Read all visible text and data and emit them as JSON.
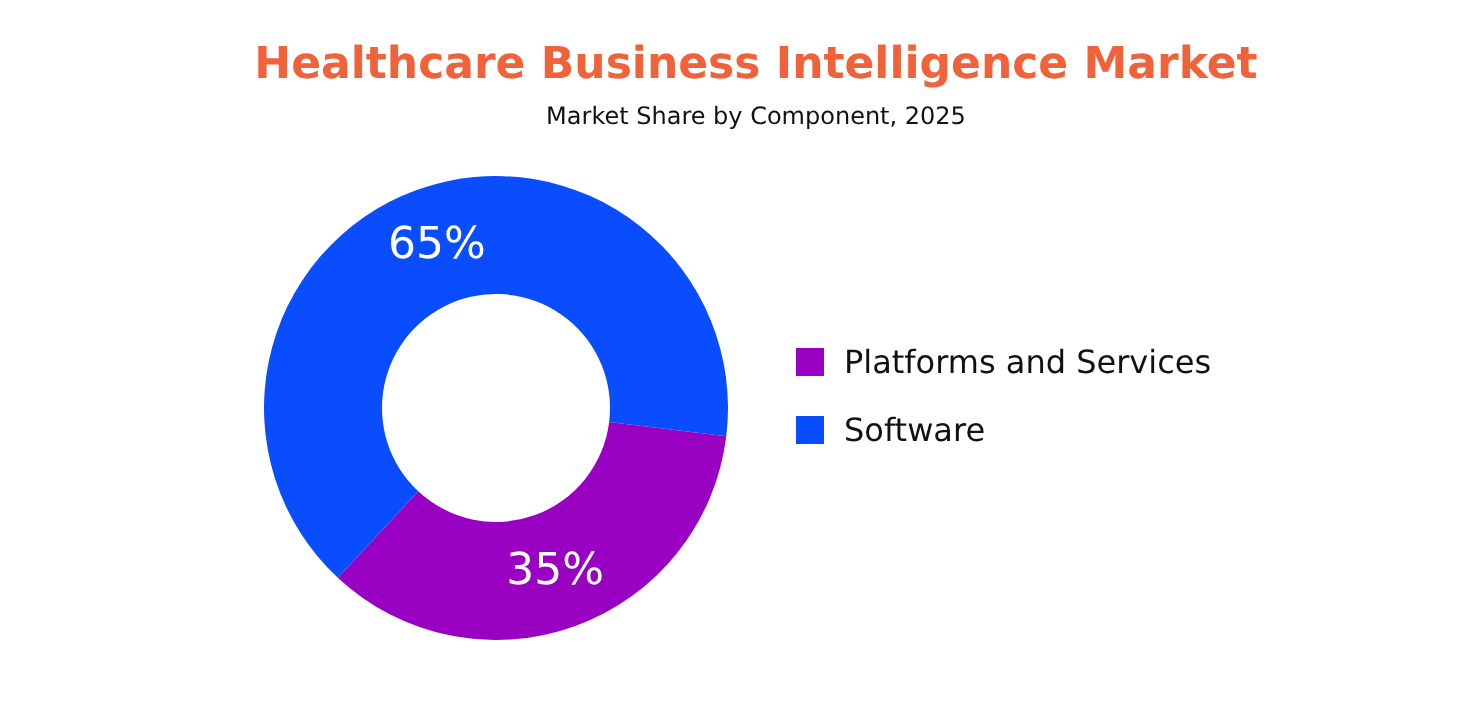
{
  "chart_data": {
    "type": "donut",
    "title": "Healthcare Business Intelligence Market",
    "subtitle": "Market Share by Component, 2025",
    "categories": [
      "Platforms and Services",
      "Software"
    ],
    "values": [
      35,
      65
    ],
    "colors": [
      "#9900c2",
      "#0a4dff"
    ],
    "value_labels": [
      "35%",
      "65%"
    ],
    "legend": "right"
  }
}
